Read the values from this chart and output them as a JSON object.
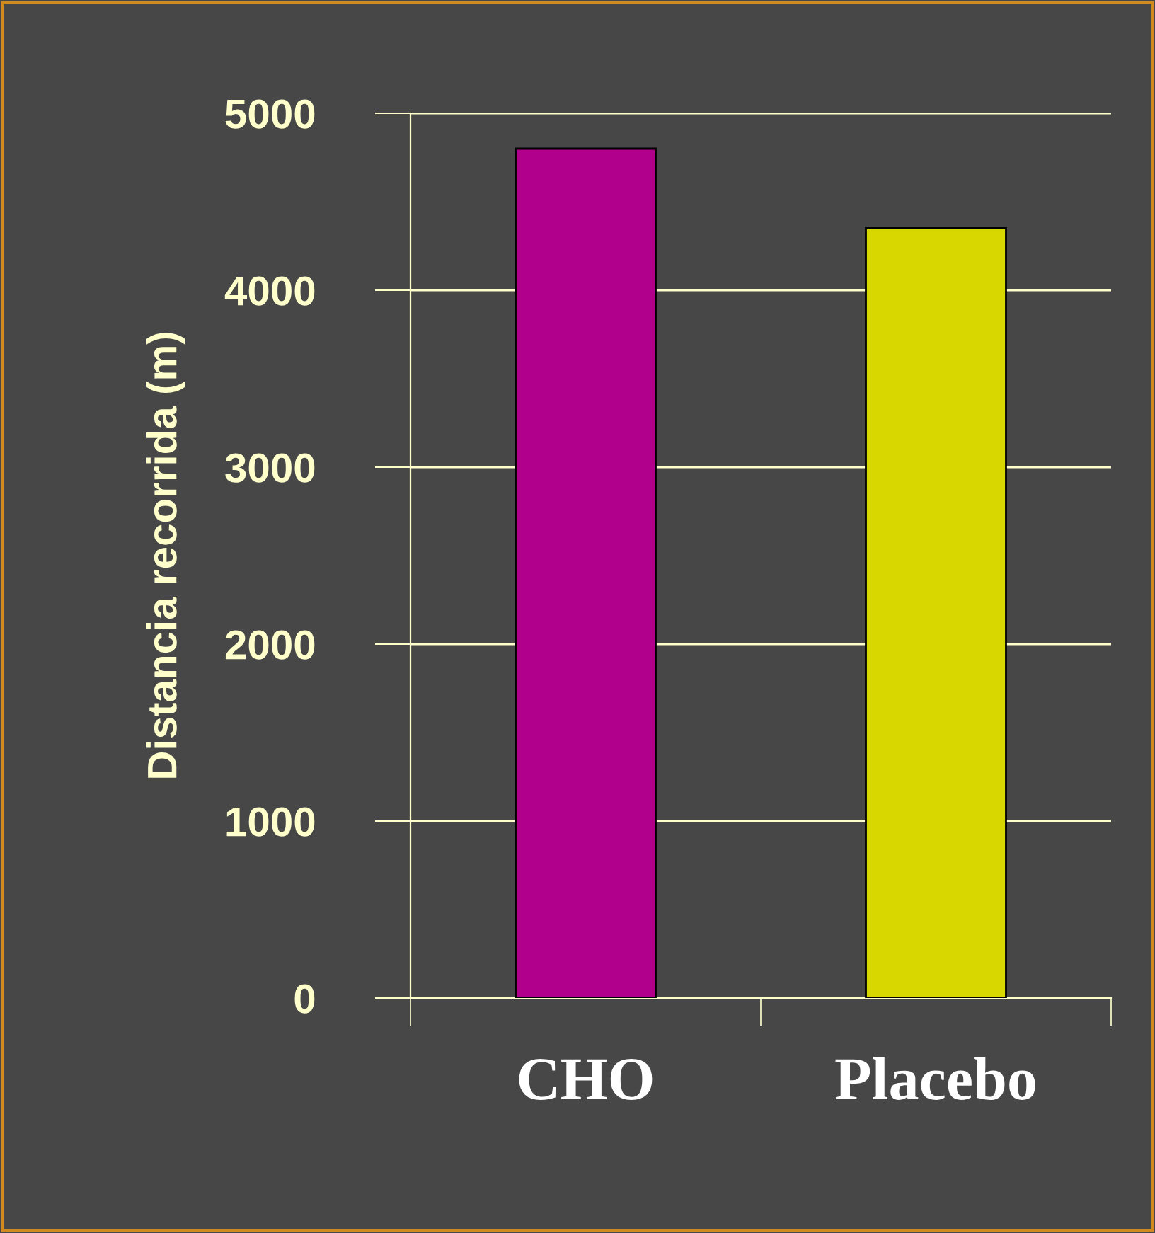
{
  "chart_data": {
    "type": "bar",
    "ylabel": "Distancia recorrida (m)",
    "categories": [
      "CHO",
      "Placebo"
    ],
    "values": [
      4800,
      4350
    ],
    "colors": [
      "#b0008c",
      "#d8d800"
    ],
    "ylim": [
      0,
      5000
    ],
    "yticks": [
      0,
      1000,
      2000,
      3000,
      4000,
      5000
    ],
    "grid": "y"
  }
}
